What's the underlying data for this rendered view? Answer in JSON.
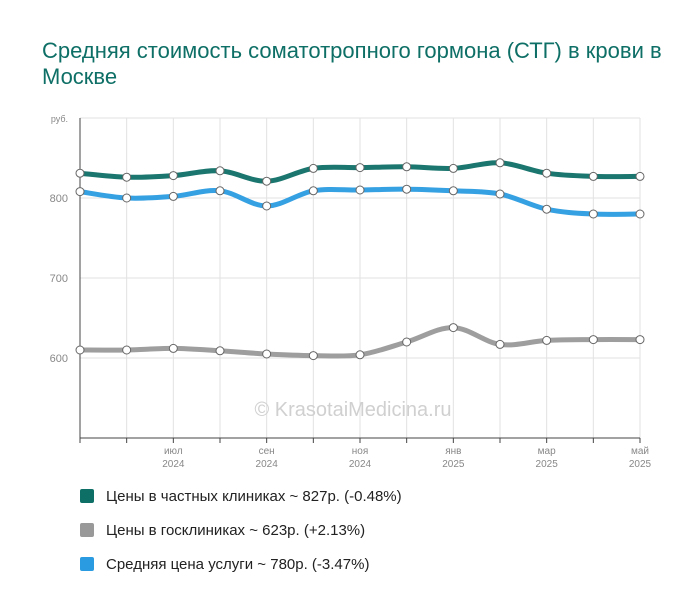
{
  "title": "Средняя стоимость соматотропного гормона (СТГ) в крови в Москве",
  "watermark": "© KrasotaiMedicina.ru",
  "colors": {
    "private": "#0e6f66",
    "state": "#999999",
    "average": "#2a9be0",
    "grid": "#e2e2e2",
    "axis": "#444444",
    "tick_text": "#888888"
  },
  "legend": [
    {
      "series": "private",
      "label": "Цены в частных клиниках ~ 827р. (-0.48%)"
    },
    {
      "series": "state",
      "label": "Цены в госклиниках ~ 623р. (+2.13%)"
    },
    {
      "series": "average",
      "label": "Средняя цена услуги ~ 780р. (-3.47%)"
    }
  ],
  "chart_data": {
    "type": "line",
    "title": "Средняя стоимость соматотропного гормона (СТГ) в крови в Москве",
    "ylabel": "руб.",
    "ylim": [
      500,
      900
    ],
    "y_ticks": [
      600,
      700,
      800
    ],
    "grid": true,
    "legend_position": "bottom",
    "x": [
      "2024-05",
      "2024-06",
      "2024-07",
      "2024-08",
      "2024-09",
      "2024-10",
      "2024-11",
      "2024-12",
      "2025-01",
      "2025-02",
      "2025-03",
      "2025-04",
      "2025-05"
    ],
    "x_tick_labels": [
      {
        "month": "июл",
        "year": "2024",
        "at": "2024-07"
      },
      {
        "month": "сен",
        "year": "2024",
        "at": "2024-09"
      },
      {
        "month": "ноя",
        "year": "2024",
        "at": "2024-11"
      },
      {
        "month": "янв",
        "year": "2025",
        "at": "2025-01"
      },
      {
        "month": "мар",
        "year": "2025",
        "at": "2025-03"
      },
      {
        "month": "май",
        "year": "2025",
        "at": "2025-05"
      }
    ],
    "series": [
      {
        "name": "Цены в частных клиниках",
        "key": "private",
        "values": [
          831,
          826,
          828,
          834,
          821,
          837,
          838,
          839,
          837,
          844,
          831,
          827,
          827
        ]
      },
      {
        "name": "Цены в госклиниках",
        "key": "state",
        "values": [
          610,
          610,
          612,
          609,
          605,
          603,
          604,
          620,
          638,
          617,
          622,
          623,
          623
        ]
      },
      {
        "name": "Средняя цена услуги",
        "key": "average",
        "values": [
          808,
          800,
          802,
          809,
          790,
          809,
          810,
          811,
          809,
          805,
          786,
          780,
          780
        ]
      }
    ]
  }
}
